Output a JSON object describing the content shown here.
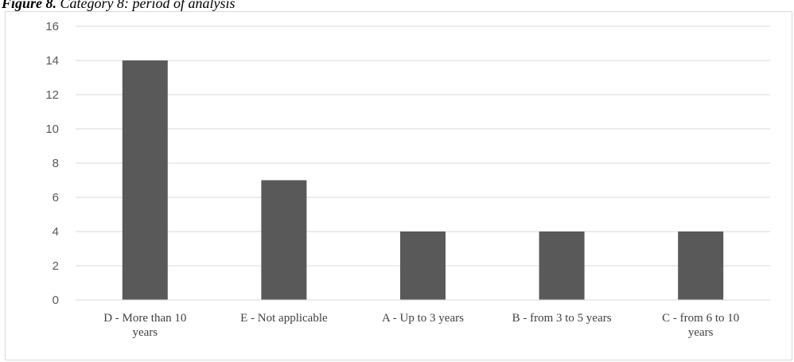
{
  "caption": {
    "lead": "Figure 8.",
    "rest": "Category 8: period of analysis"
  },
  "chart_data": {
    "type": "bar",
    "categories": [
      [
        "D - More than 10",
        "years"
      ],
      [
        "E - Not applicable"
      ],
      [
        "A - Up to 3 years"
      ],
      [
        "B - from 3 to 5 years"
      ],
      [
        "C - from 6 to 10",
        "years"
      ]
    ],
    "values": [
      14,
      7,
      4,
      4,
      4
    ],
    "ylim": [
      0,
      16
    ],
    "yticks": [
      0,
      2,
      4,
      6,
      8,
      10,
      12,
      14,
      16
    ],
    "grid": true,
    "bar_color": "#595959",
    "grid_color": "#d9d9d9"
  }
}
